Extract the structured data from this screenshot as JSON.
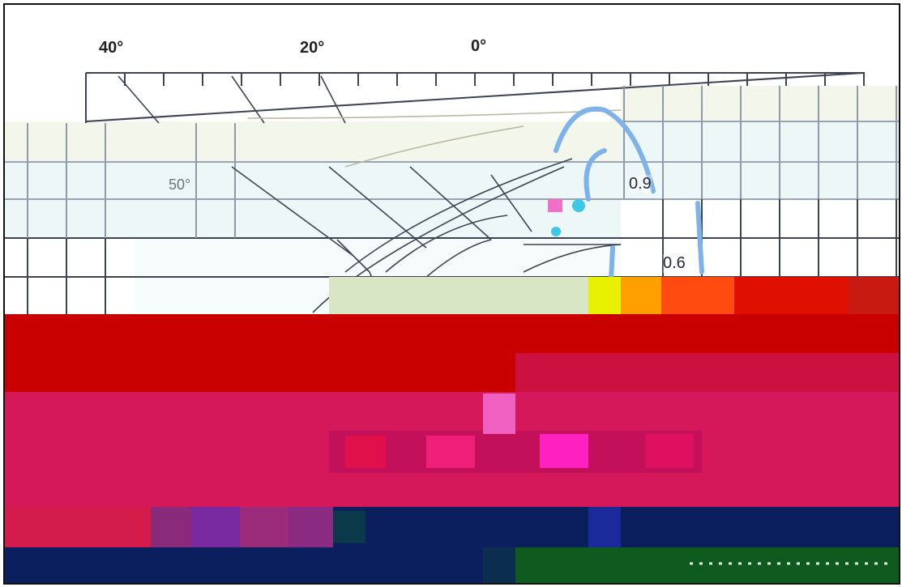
{
  "map": {
    "longitude_labels": [
      "40°",
      "20°",
      "0°"
    ],
    "latitude_label": "50°",
    "contour_labels": [
      "0.9",
      "0.6"
    ],
    "colors": {
      "frame": "#111111",
      "land_pale": "#f3f6ea",
      "sea_pale": "#eef7f8",
      "grid": "#3c4454",
      "contour_blue": "#7db3e8",
      "field_red": "#c80000",
      "field_magenta": "#d4185a",
      "field_navy": "#0b1e5e",
      "field_green": "#0f5a1f"
    }
  }
}
